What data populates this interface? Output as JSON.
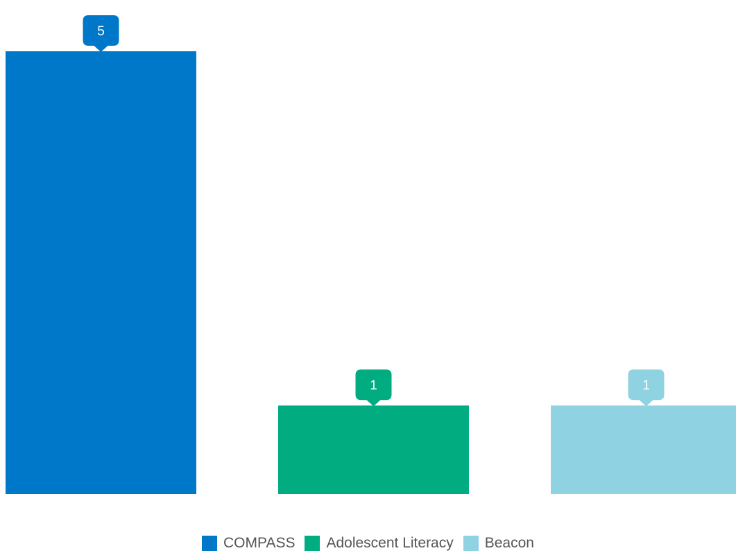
{
  "chart_data": {
    "type": "bar",
    "categories": [
      "COMPASS",
      "Adolescent Literacy",
      "Beacon"
    ],
    "values": [
      5,
      1,
      1
    ],
    "colors": [
      "#0078c9",
      "#00ac80",
      "#8fd2e2"
    ],
    "data_labels": [
      "5",
      "1",
      "1"
    ],
    "ylim": [
      0,
      5
    ],
    "grid": false,
    "legend_position": "bottom-center",
    "title": "",
    "xlabel": "",
    "ylabel": ""
  },
  "legend": {
    "items": [
      {
        "label": "COMPASS",
        "color": "#0078c9"
      },
      {
        "label": "Adolescent Literacy",
        "color": "#00ac80"
      },
      {
        "label": "Beacon",
        "color": "#8fd2e2"
      }
    ]
  }
}
